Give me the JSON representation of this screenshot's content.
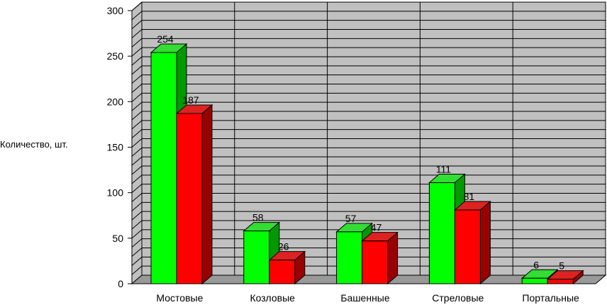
{
  "chart_data": {
    "type": "bar",
    "title": "",
    "xlabel": "",
    "ylabel": "Количество, шт.",
    "ylim": [
      0,
      300
    ],
    "ytick_step": 50,
    "minor_grid_step": 10,
    "grid": true,
    "categories": [
      "Мостовые",
      "Козловые",
      "Башенные",
      "Стреловые",
      "Портальные"
    ],
    "series": [
      {
        "name": "",
        "values": [
          254,
          58,
          57,
          111,
          6
        ],
        "colors": {
          "front": "#00ff00",
          "top": "#33dd33",
          "side": "#009900"
        }
      },
      {
        "name": "",
        "values": [
          187,
          26,
          47,
          81,
          5
        ],
        "colors": {
          "front": "#ff0000",
          "top": "#dd2222",
          "side": "#990000"
        }
      }
    ],
    "style": {
      "wall": "#c0c0c0",
      "floor": "#999999",
      "grid_color": "#000000"
    }
  }
}
